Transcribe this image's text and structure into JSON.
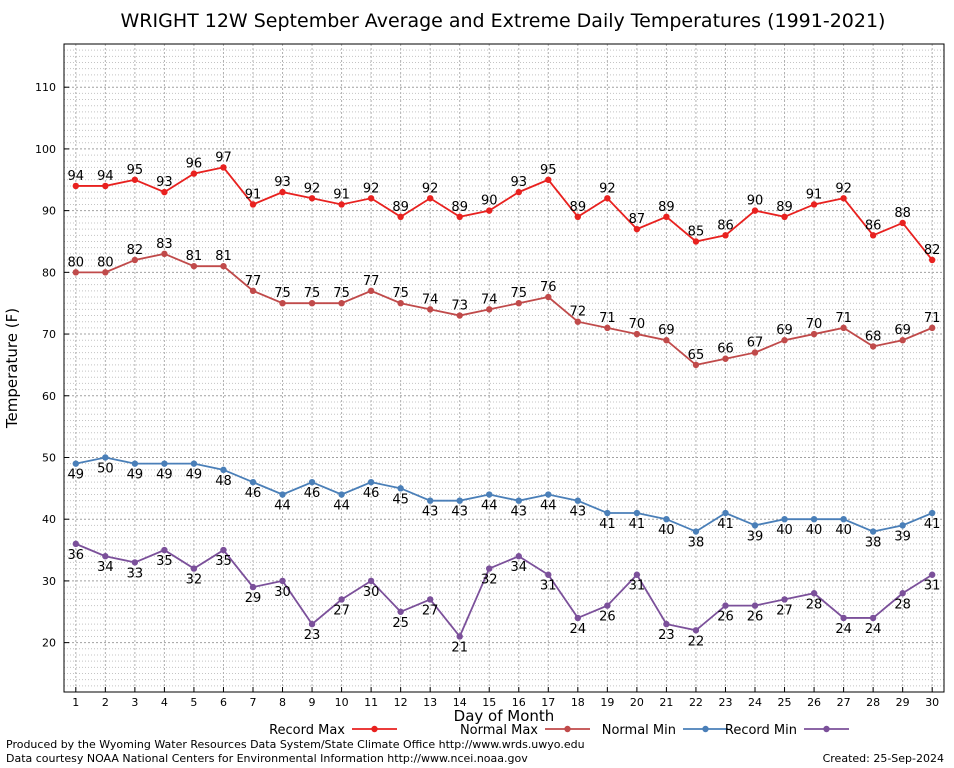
{
  "chart_data": {
    "type": "line",
    "title": "WRIGHT 12W September Average and Extreme Daily Temperatures (1991-2021)",
    "xlabel": "Day of Month",
    "ylabel": "Temperature (F)",
    "x": [
      1,
      2,
      3,
      4,
      5,
      6,
      7,
      8,
      9,
      10,
      11,
      12,
      13,
      14,
      15,
      16,
      17,
      18,
      19,
      20,
      21,
      22,
      23,
      24,
      25,
      26,
      27,
      28,
      29,
      30
    ],
    "xlim": [
      0.6,
      30.4
    ],
    "ylim": [
      12,
      117
    ],
    "yticks": [
      20,
      30,
      40,
      50,
      60,
      70,
      80,
      90,
      100,
      110
    ],
    "grid": true,
    "legend_position": "bottom",
    "series": [
      {
        "name": "Record Max",
        "color": "#e8211f",
        "label_position": "above",
        "values": [
          94,
          94,
          95,
          93,
          96,
          97,
          91,
          93,
          92,
          91,
          92,
          89,
          92,
          89,
          90,
          93,
          95,
          89,
          92,
          87,
          89,
          85,
          86,
          90,
          89,
          91,
          92,
          86,
          88,
          82
        ]
      },
      {
        "name": "Normal Max",
        "color": "#c04a4a",
        "label_position": "above",
        "values": [
          80,
          80,
          82,
          83,
          81,
          81,
          77,
          75,
          75,
          75,
          77,
          75,
          74,
          73,
          74,
          75,
          76,
          72,
          71,
          70,
          69,
          65,
          66,
          67,
          69,
          70,
          71,
          68,
          69,
          71
        ]
      },
      {
        "name": "Normal Min",
        "color": "#4a7fb8",
        "label_position": "below",
        "values": [
          49,
          50,
          49,
          49,
          49,
          48,
          46,
          44,
          46,
          44,
          46,
          45,
          43,
          43,
          44,
          43,
          44,
          43,
          41,
          41,
          40,
          38,
          41,
          39,
          40,
          40,
          40,
          38,
          39,
          41
        ]
      },
      {
        "name": "Record Min",
        "color": "#7b509a",
        "label_position": "below",
        "values": [
          36,
          34,
          33,
          35,
          32,
          35,
          29,
          30,
          23,
          27,
          30,
          25,
          27,
          21,
          32,
          34,
          31,
          24,
          26,
          31,
          23,
          22,
          26,
          26,
          27,
          28,
          24,
          24,
          28,
          31
        ]
      }
    ]
  },
  "footer": {
    "credit_line_1": "Produced by the Wyoming Water Resources Data System/State Climate Office http://www.wrds.uwyo.edu",
    "credit_line_2": "Data courtesy NOAA National Centers for Environmental Information http://www.ncei.noaa.gov",
    "created": "Created:  25-Sep-2024"
  }
}
